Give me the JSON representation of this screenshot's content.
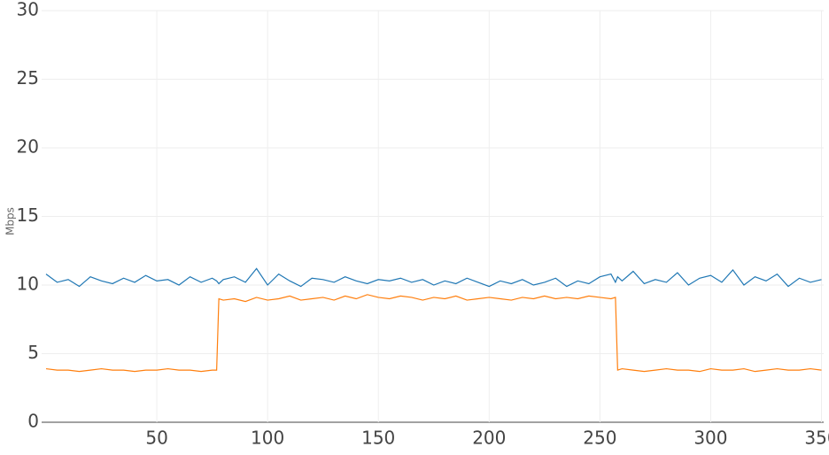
{
  "chart_data": {
    "type": "line",
    "y_label": "Mbps",
    "x": [
      0,
      5,
      10,
      15,
      20,
      25,
      30,
      35,
      40,
      45,
      50,
      55,
      60,
      65,
      70,
      75,
      77,
      78,
      80,
      85,
      90,
      95,
      100,
      105,
      110,
      115,
      120,
      125,
      130,
      135,
      140,
      145,
      150,
      155,
      160,
      165,
      170,
      175,
      180,
      185,
      190,
      195,
      200,
      205,
      210,
      215,
      220,
      225,
      230,
      235,
      240,
      245,
      250,
      255,
      257,
      258,
      260,
      265,
      270,
      275,
      280,
      285,
      290,
      295,
      300,
      305,
      310,
      315,
      320,
      325,
      330,
      335,
      340,
      345,
      350
    ],
    "series": [
      {
        "color": "#1f77b4",
        "values": [
          10.8,
          10.2,
          10.4,
          9.9,
          10.6,
          10.3,
          10.1,
          10.5,
          10.2,
          10.7,
          10.3,
          10.4,
          10.0,
          10.6,
          10.2,
          10.5,
          10.3,
          10.1,
          10.4,
          10.6,
          10.2,
          11.2,
          10.0,
          10.8,
          10.3,
          9.9,
          10.5,
          10.4,
          10.2,
          10.6,
          10.3,
          10.1,
          10.4,
          10.3,
          10.5,
          10.2,
          10.4,
          10.0,
          10.3,
          10.1,
          10.5,
          10.2,
          9.9,
          10.3,
          10.1,
          10.4,
          10.0,
          10.2,
          10.5,
          9.9,
          10.3,
          10.1,
          10.6,
          10.8,
          10.2,
          10.6,
          10.3,
          11.0,
          10.1,
          10.4,
          10.2,
          10.9,
          10.0,
          10.5,
          10.7,
          10.2,
          11.1,
          10.0,
          10.6,
          10.3,
          10.8,
          9.9,
          10.5,
          10.2,
          10.4
        ]
      },
      {
        "color": "#ff7f0e",
        "values": [
          3.9,
          3.8,
          3.8,
          3.7,
          3.8,
          3.9,
          3.8,
          3.8,
          3.7,
          3.8,
          3.8,
          3.9,
          3.8,
          3.8,
          3.7,
          3.8,
          3.8,
          9.0,
          8.9,
          9.0,
          8.8,
          9.1,
          8.9,
          9.0,
          9.2,
          8.9,
          9.0,
          9.1,
          8.9,
          9.2,
          9.0,
          9.3,
          9.1,
          9.0,
          9.2,
          9.1,
          8.9,
          9.1,
          9.0,
          9.2,
          8.9,
          9.0,
          9.1,
          9.0,
          8.9,
          9.1,
          9.0,
          9.2,
          9.0,
          9.1,
          9.0,
          9.2,
          9.1,
          9.0,
          9.1,
          3.8,
          3.9,
          3.8,
          3.7,
          3.8,
          3.9,
          3.8,
          3.8,
          3.7,
          3.9,
          3.8,
          3.8,
          3.9,
          3.7,
          3.8,
          3.9,
          3.8,
          3.8,
          3.9,
          3.8
        ]
      }
    ],
    "xlim": [
      -2,
      351
    ],
    "ylim": [
      0,
      30
    ],
    "xticks": [
      50,
      100,
      150,
      200,
      250,
      300,
      350
    ],
    "yticks": [
      0,
      5,
      10,
      15,
      20,
      25,
      30
    ],
    "grid": true
  }
}
